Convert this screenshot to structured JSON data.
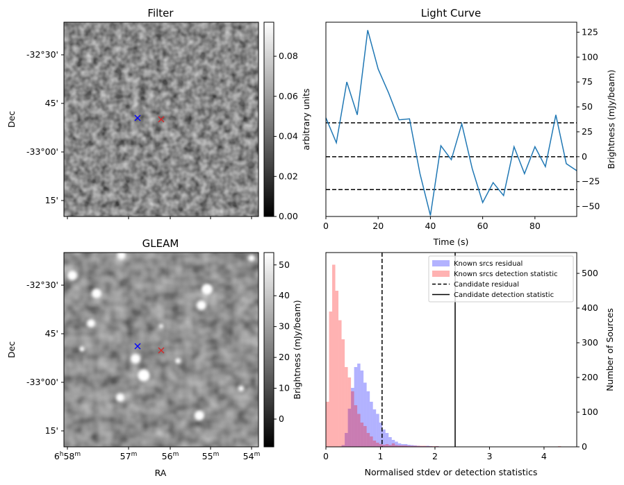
{
  "filter_panel": {
    "title": "Filter",
    "ylabel": "Dec",
    "y_ticks": [
      "-32°30'",
      "45'",
      "-33°00'",
      "15'"
    ],
    "colorbar_label": "arbitrary units",
    "colorbar_ticks": [
      "0.00",
      "0.02",
      "0.04",
      "0.06",
      "0.08"
    ],
    "colorbar_range": [
      0,
      0.097
    ]
  },
  "gleam_panel": {
    "title": "GLEAM",
    "ylabel": "Dec",
    "xlabel": "RA",
    "y_ticks": [
      "-32°30'",
      "45'",
      "-33°00'",
      "15'"
    ],
    "x_ticks": [
      {
        "main": "6",
        "sup1": "h",
        "mid": "58",
        "sup2": "m"
      },
      {
        "main": "57",
        "sup1": "",
        "mid": "",
        "sup2": "m"
      },
      {
        "main": "56",
        "sup1": "",
        "mid": "",
        "sup2": "m"
      },
      {
        "main": "55",
        "sup1": "",
        "mid": "",
        "sup2": "m"
      },
      {
        "main": "54",
        "sup1": "",
        "mid": "",
        "sup2": "m"
      }
    ],
    "colorbar_label": "Brightness (mJy/beam)",
    "colorbar_ticks": [
      "0",
      "10",
      "20",
      "30",
      "40",
      "50"
    ],
    "colorbar_range": [
      -9,
      54
    ]
  },
  "markers": {
    "blue_color": "#0000ff",
    "red_color": "#d62728",
    "symbol": "x"
  },
  "chart_data": [
    {
      "type": "line",
      "title": "Light Curve",
      "xlabel": "Time (s)",
      "ylabel": "Brightness (mJy/beam)",
      "xlim": [
        0,
        96
      ],
      "ylim": [
        -60,
        135
      ],
      "x_ticks": [
        "0",
        "20",
        "40",
        "60",
        "80"
      ],
      "y_ticks": [
        "−50",
        "−25",
        "0",
        "25",
        "50",
        "75",
        "100",
        "125"
      ],
      "series": [
        {
          "name": "light curve",
          "color": "#1f77b4",
          "x": [
            0,
            4,
            8,
            12,
            16,
            20,
            24,
            28,
            32,
            36,
            40,
            44,
            48,
            52,
            56,
            60,
            64,
            68,
            72,
            76,
            80,
            84,
            88,
            92,
            96
          ],
          "y": [
            39,
            14,
            75,
            42,
            127,
            88,
            64,
            37,
            38,
            -17,
            -59,
            11,
            -3,
            33,
            -12,
            -46,
            -26,
            -39,
            10,
            -17,
            10,
            -10,
            42,
            -7,
            -14
          ]
        }
      ],
      "hlines": [
        {
          "y": 34,
          "style": "dashed"
        },
        {
          "y": 0,
          "style": "dashed"
        },
        {
          "y": -33,
          "style": "dashed"
        }
      ]
    },
    {
      "type": "histogram",
      "xlabel": "Normalised stdev or detection statistics",
      "ylabel": "Number of Sources",
      "xlim": [
        0,
        4.6
      ],
      "ylim": [
        0,
        560
      ],
      "x_ticks": [
        "0",
        "1",
        "2",
        "3",
        "4"
      ],
      "y_ticks": [
        "0",
        "100",
        "200",
        "300",
        "400",
        "500"
      ],
      "bin_width": 0.0575,
      "legend": [
        {
          "label": "Known srcs residual",
          "kind": "patch",
          "color": "#0000ff"
        },
        {
          "label": "Known srcs detection statistic",
          "kind": "patch",
          "color": "#ff0000"
        },
        {
          "label": "Candidate residual",
          "kind": "dashed"
        },
        {
          "label": "Candidate detection statistic",
          "kind": "solid"
        }
      ],
      "legend_loc": "upper right",
      "series": [
        {
          "name": "Known srcs residual",
          "color": "#0000ff",
          "alpha": 0.3,
          "x_start": 0.0,
          "counts": [
            0,
            0,
            0,
            0,
            0,
            5,
            40,
            110,
            170,
            230,
            240,
            220,
            185,
            160,
            130,
            108,
            95,
            70,
            50,
            40,
            28,
            20,
            15,
            10,
            8,
            8,
            6,
            5,
            4,
            3,
            2,
            2,
            3,
            2,
            1,
            2,
            1,
            1,
            1,
            0
          ]
        },
        {
          "name": "Known srcs detection statistic",
          "color": "#ff0000",
          "alpha": 0.3,
          "x_start": 0.0,
          "counts": [
            130,
            390,
            525,
            450,
            365,
            310,
            230,
            200,
            160,
            120,
            95,
            70,
            60,
            40,
            30,
            18,
            12,
            8,
            6,
            8,
            5,
            10,
            5,
            4,
            4,
            4,
            3,
            3,
            3,
            3,
            3,
            3,
            2,
            2,
            2,
            2,
            1,
            1,
            1,
            1,
            1,
            1,
            1,
            1,
            1,
            1,
            1,
            0,
            0,
            0,
            1,
            0,
            0,
            0,
            0,
            0,
            0,
            0,
            0,
            0,
            0,
            0,
            0,
            0,
            0,
            0,
            0,
            0,
            0,
            0,
            1,
            0,
            0,
            0,
            2,
            1,
            0,
            0,
            0
          ]
        }
      ],
      "vlines": [
        {
          "x": 1.03,
          "style": "dashed",
          "label": "Candidate residual"
        },
        {
          "x": 2.37,
          "style": "solid",
          "label": "Candidate detection statistic"
        }
      ]
    }
  ]
}
